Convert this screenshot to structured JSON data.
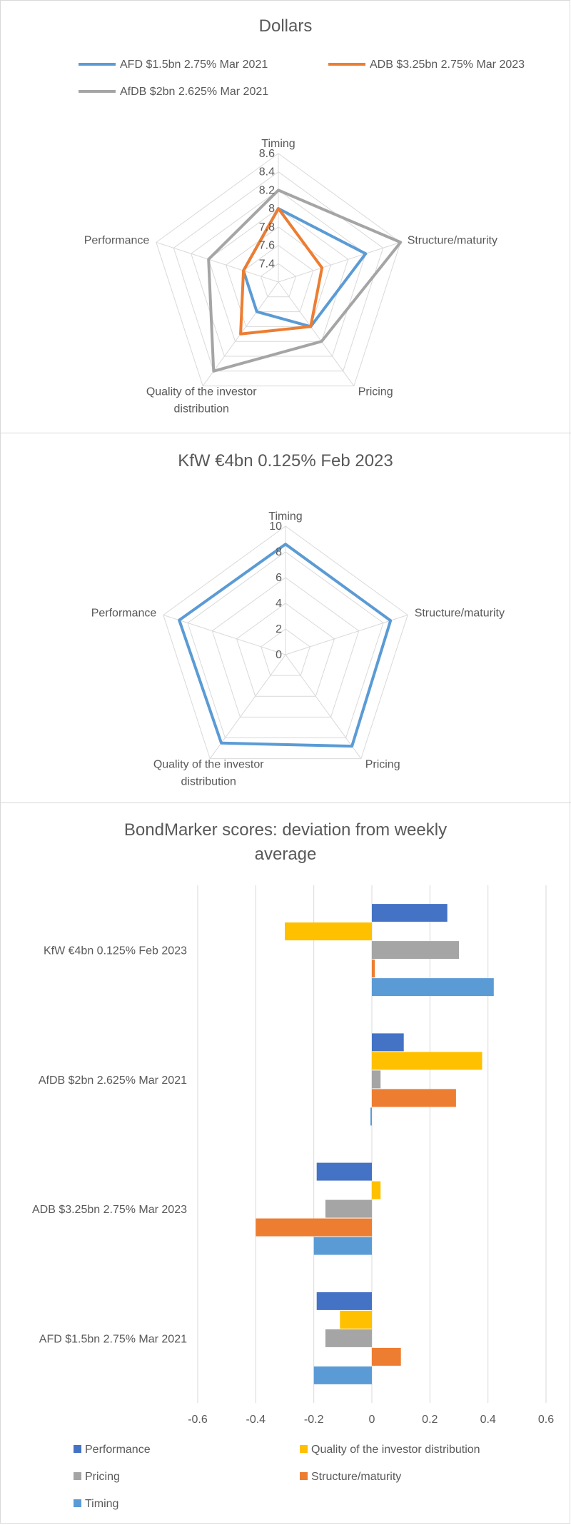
{
  "chart_data": [
    {
      "type": "radar",
      "title": "Dollars",
      "axes": [
        "Timing",
        "Structure/maturity",
        "Pricing",
        "Quality of the investor distribution",
        "Performance"
      ],
      "axis_label_lines": [
        [
          "Timing"
        ],
        [
          "Structure/maturity"
        ],
        [
          "Pricing"
        ],
        [
          "Quality of the investor",
          "distribution"
        ],
        [
          "Performance"
        ]
      ],
      "rlim": [
        7.2,
        8.6
      ],
      "ticks": [
        7.4,
        7.6,
        7.8,
        8,
        8.2,
        8.4,
        8.6
      ],
      "tick_labels": [
        "7.4",
        "7.6",
        "7.8",
        "8",
        "8.2",
        "8.4",
        "8.6"
      ],
      "grid": true,
      "legend_placement": "top",
      "series": [
        {
          "name": "AFD $1.5bn 2.75% Mar 2021",
          "color": "#5b9bd5",
          "values": [
            8.0,
            8.2,
            7.8,
            7.6,
            7.6
          ]
        },
        {
          "name": "ADB $3.25bn 2.75% Mar 2023",
          "color": "#ed7d31",
          "values": [
            8.0,
            7.7,
            7.8,
            7.9,
            7.6
          ]
        },
        {
          "name": "AfDB $2bn 2.625% Mar 2021",
          "color": "#a5a5a5",
          "values": [
            8.2,
            8.6,
            8.0,
            8.4,
            8.0
          ]
        }
      ]
    },
    {
      "type": "radar",
      "title": "KfW €4bn 0.125% Feb 2023",
      "axes": [
        "Timing",
        "Structure/maturity",
        "Pricing",
        "Quality of the investor distribution",
        "Performance"
      ],
      "axis_label_lines": [
        [
          "Timing"
        ],
        [
          "Structure/maturity"
        ],
        [
          "Pricing"
        ],
        [
          "Quality of the investor",
          "distribution"
        ],
        [
          "Performance"
        ]
      ],
      "rlim": [
        0,
        10
      ],
      "ticks": [
        0,
        2,
        4,
        6,
        8,
        10
      ],
      "tick_labels": [
        "0",
        "2",
        "4",
        "6",
        "8",
        "10"
      ],
      "grid": true,
      "series": [
        {
          "color": "#5b9bd5",
          "values": [
            8.6,
            8.6,
            8.8,
            8.5,
            8.7
          ]
        }
      ]
    },
    {
      "type": "bar",
      "orientation": "horizontal",
      "title_lines": [
        "BondMarker scores: deviation from weekly",
        "average"
      ],
      "categories": [
        "KfW €4bn 0.125% Feb 2023",
        "AfDB $2bn 2.625% Mar 2021",
        "ADB $3.25bn 2.75% Mar 2023",
        "AFD $1.5bn 2.75% Mar 2021"
      ],
      "xlim": [
        -0.6,
        0.6
      ],
      "ticks": [
        -0.6,
        -0.4,
        -0.2,
        0,
        0.2,
        0.4,
        0.6
      ],
      "tick_labels": [
        "-0.6",
        "-0.4",
        "-0.2",
        "0",
        "0.2",
        "0.4",
        "0.6"
      ],
      "grid": true,
      "legend_placement": "bottom",
      "series": [
        {
          "name": "Performance",
          "color": "#4472c4",
          "values": [
            0.26,
            0.11,
            -0.19,
            -0.19
          ]
        },
        {
          "name": "Quality of the investor distribution",
          "color": "#ffc000",
          "values": [
            -0.3,
            0.38,
            0.03,
            -0.11
          ]
        },
        {
          "name": "Pricing",
          "color": "#a5a5a5",
          "values": [
            0.3,
            0.03,
            -0.16,
            -0.16
          ]
        },
        {
          "name": "Structure/maturity",
          "color": "#ed7d31",
          "values": [
            0.01,
            0.29,
            -0.4,
            0.1
          ]
        },
        {
          "name": "Timing",
          "color": "#5b9bd5",
          "values": [
            0.42,
            -0.005,
            -0.2,
            -0.2
          ]
        }
      ]
    }
  ]
}
